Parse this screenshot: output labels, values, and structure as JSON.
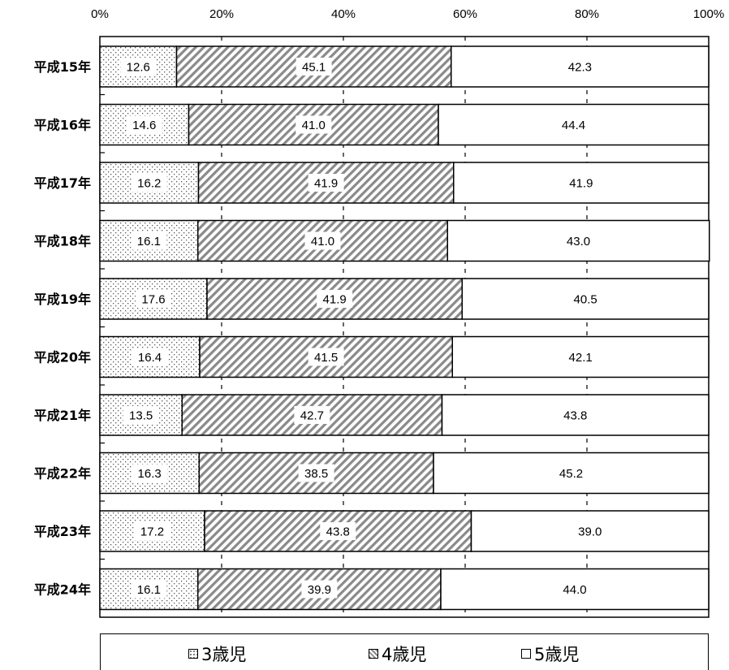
{
  "chart_data": {
    "type": "bar",
    "orientation": "horizontal",
    "stacked": true,
    "percent_scale": true,
    "categories": [
      "平成15年",
      "平成16年",
      "平成17年",
      "平成18年",
      "平成19年",
      "平成20年",
      "平成21年",
      "平成22年",
      "平成23年",
      "平成24年"
    ],
    "series": [
      {
        "name": "3歳児",
        "values": [
          12.6,
          14.6,
          16.2,
          16.1,
          17.6,
          16.4,
          13.5,
          16.3,
          17.2,
          16.1
        ],
        "pattern": "dots"
      },
      {
        "name": "4歳児",
        "values": [
          45.1,
          41.0,
          41.9,
          41.0,
          41.9,
          41.5,
          42.7,
          38.5,
          43.8,
          39.9
        ],
        "pattern": "diagonal"
      },
      {
        "name": "5歳児",
        "values": [
          42.3,
          44.4,
          41.9,
          43.0,
          40.5,
          42.1,
          43.8,
          45.2,
          39.0,
          44.0
        ],
        "pattern": "blank"
      }
    ],
    "value_labels": [
      [
        "12.6",
        "45.1",
        "42.3"
      ],
      [
        "14.6",
        "41.0",
        "44.4"
      ],
      [
        "16.2",
        "41.9",
        "41.9"
      ],
      [
        "16.1",
        "41.0",
        "43.0"
      ],
      [
        "17.6",
        "41.9",
        "40.5"
      ],
      [
        "16.4",
        "41.5",
        "42.1"
      ],
      [
        "13.5",
        "42.7",
        "43.8"
      ],
      [
        "16.3",
        "38.5",
        "45.2"
      ],
      [
        "17.2",
        "43.8",
        "39.0"
      ],
      [
        "16.1",
        "39.9",
        "44.0"
      ]
    ],
    "x_ticks": [
      "0%",
      "20%",
      "40%",
      "60%",
      "80%",
      "100%"
    ],
    "xlim": [
      0,
      100
    ],
    "grid": "dashed-vertical",
    "legend_position": "bottom",
    "title": "",
    "xlabel": "",
    "ylabel": ""
  },
  "legend": [
    "3歳児",
    "4歳児",
    "5歳児"
  ]
}
